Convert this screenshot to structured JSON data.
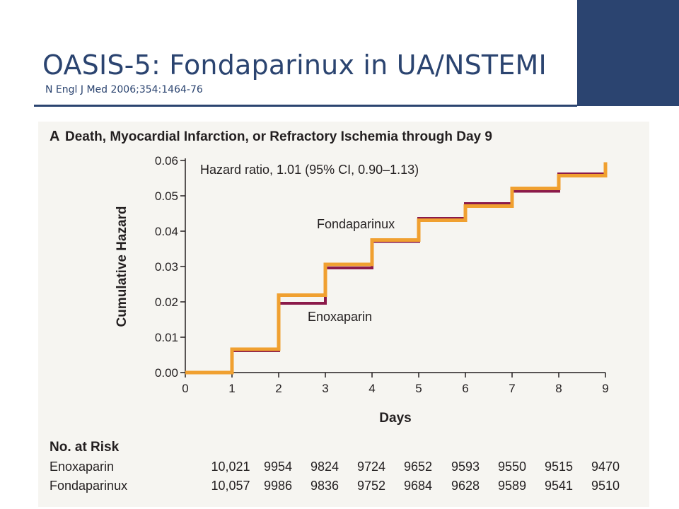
{
  "slide": {
    "title": "OASIS-5: Fondaparinux in UA/NSTEMI",
    "subtitle": "N Engl J Med 2006;354:1464-76",
    "accent_color": "#2b4470",
    "panel_bg": "#f6f5f1"
  },
  "chart_data": {
    "type": "line",
    "panel_label": "A",
    "title": "Death, Myocardial Infarction, or Refractory Ischemia through Day 9",
    "xlabel": "Days",
    "ylabel": "Cumulative Hazard",
    "xlim": [
      0,
      9
    ],
    "ylim": [
      0,
      0.06
    ],
    "x_ticks": [
      "0",
      "1",
      "2",
      "3",
      "4",
      "5",
      "6",
      "7",
      "8",
      "9"
    ],
    "y_ticks": [
      "0.00",
      "0.01",
      "0.02",
      "0.03",
      "0.04",
      "0.05",
      "0.06"
    ],
    "annotation": "Hazard ratio, 1.01 (95% CI, 0.90–1.13)",
    "series": [
      {
        "name": "Enoxaparin",
        "color": "#8b1a4a",
        "step_x": [
          0,
          1,
          2,
          3,
          4,
          5,
          6,
          7,
          8,
          9
        ],
        "step_y": [
          0.0,
          0.0062,
          0.0196,
          0.0296,
          0.0371,
          0.0436,
          0.0478,
          0.0513,
          0.0562,
          0.0595
        ]
      },
      {
        "name": "Fondaparinux",
        "color": "#f0a030",
        "step_x": [
          0,
          1,
          2,
          3,
          4,
          5,
          6,
          7,
          8,
          9
        ],
        "step_y": [
          0.0,
          0.0066,
          0.0219,
          0.0306,
          0.0375,
          0.0431,
          0.0471,
          0.0521,
          0.0557,
          0.0595
        ]
      }
    ]
  },
  "risk_table": {
    "heading": "No. at Risk",
    "rows": [
      {
        "label": "Enoxaparin",
        "values": [
          "10,021",
          "9954",
          "9824",
          "9724",
          "9652",
          "9593",
          "9550",
          "9515",
          "9470"
        ]
      },
      {
        "label": "Fondaparinux",
        "values": [
          "10,057",
          "9986",
          "9836",
          "9752",
          "9684",
          "9628",
          "9589",
          "9541",
          "9510"
        ]
      }
    ]
  }
}
